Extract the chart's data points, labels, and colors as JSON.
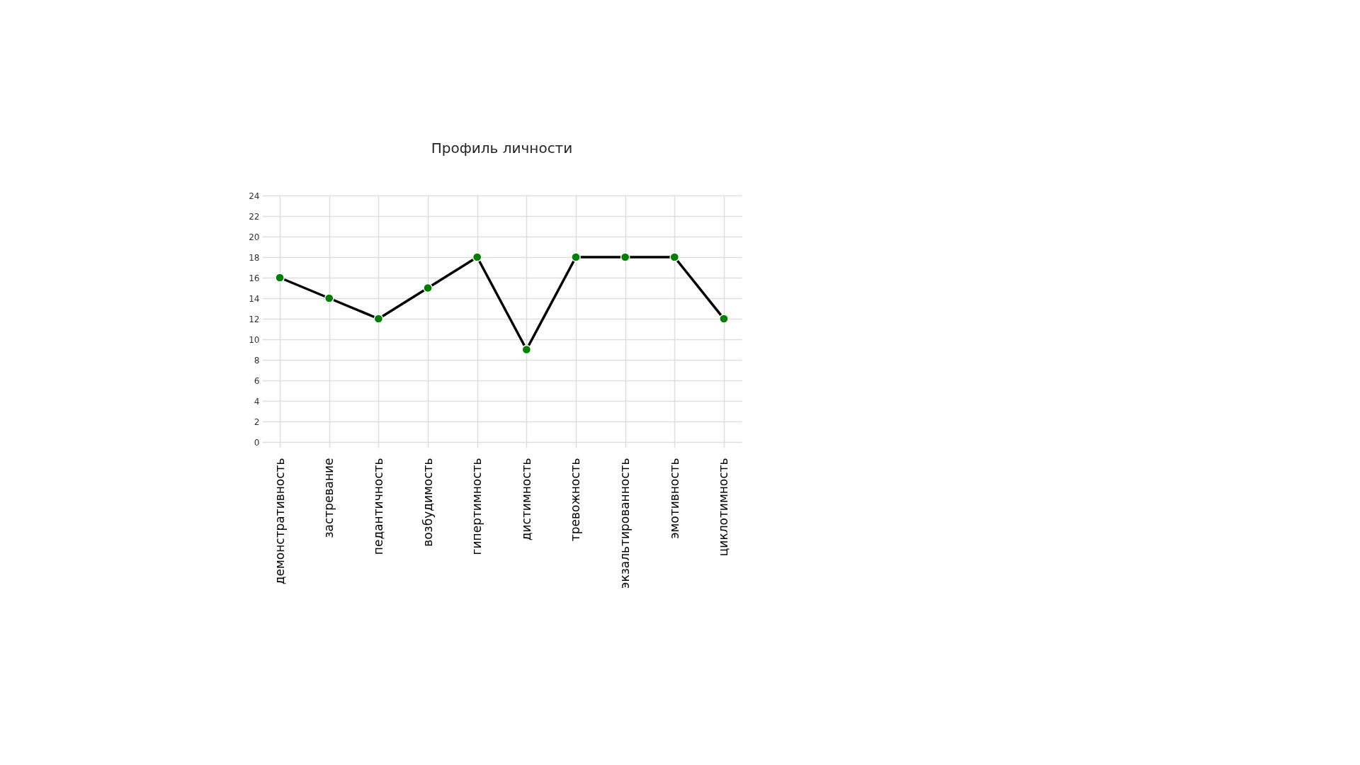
{
  "chart_data": {
    "type": "line",
    "title": "Профиль личности",
    "categories": [
      "демонстративность",
      "застревание",
      "педантичность",
      "возбудимость",
      "гипертимность",
      "дистимность",
      "тревожность",
      "экзальтированность",
      "эмотивность",
      "циклотимность"
    ],
    "values": [
      16,
      14,
      12,
      15,
      18,
      9,
      18,
      18,
      18,
      12
    ],
    "color": "#000000",
    "colors": [
      "#008000",
      "#008000",
      "#008000",
      "#008000",
      "#008000",
      "#008000",
      "#008000",
      "#008000",
      "#008000",
      "#008000"
    ],
    "ylim": [
      0,
      24
    ],
    "yticks": [
      0,
      2,
      4,
      6,
      8,
      10,
      12,
      14,
      16,
      18,
      20,
      22,
      24
    ],
    "grid": true,
    "marker": "circle",
    "line_style": "solid"
  }
}
